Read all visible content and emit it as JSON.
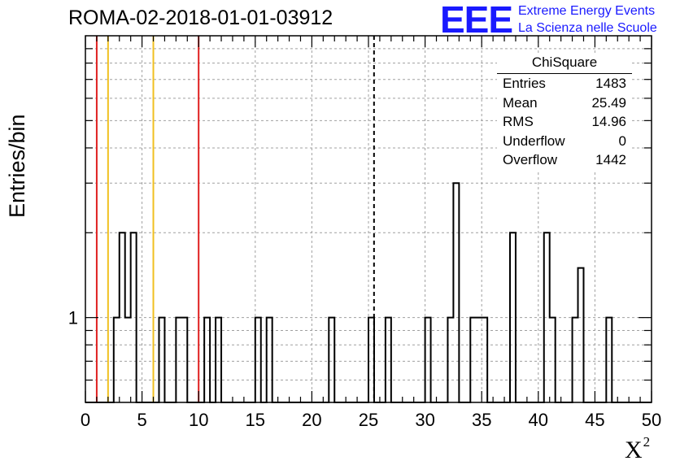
{
  "chart_data": {
    "type": "histogram",
    "title": "ROMA-02-2018-01-01-03912",
    "xlabel": "X",
    "xlabel_sup": "2",
    "ylabel": "Entries/bin",
    "xlim": [
      0,
      50
    ],
    "ylog": true,
    "ylim": [
      0.5,
      10
    ],
    "grid": true,
    "x_ticks": [
      "0",
      "5",
      "10",
      "15",
      "20",
      "25",
      "30",
      "35",
      "40",
      "45",
      "50"
    ],
    "y_ticks": [
      "1"
    ],
    "bin_width": 0.5,
    "bins": [
      {
        "x": 2.5,
        "y": 1
      },
      {
        "x": 3.0,
        "y": 2
      },
      {
        "x": 3.5,
        "y": 1
      },
      {
        "x": 4.0,
        "y": 2
      },
      {
        "x": 6.5,
        "y": 1
      },
      {
        "x": 8.0,
        "y": 1
      },
      {
        "x": 8.5,
        "y": 1
      },
      {
        "x": 10.5,
        "y": 1
      },
      {
        "x": 11.5,
        "y": 1
      },
      {
        "x": 15.0,
        "y": 1
      },
      {
        "x": 16.0,
        "y": 1
      },
      {
        "x": 21.5,
        "y": 1
      },
      {
        "x": 25.0,
        "y": 1
      },
      {
        "x": 26.5,
        "y": 1
      },
      {
        "x": 30.0,
        "y": 1
      },
      {
        "x": 32.0,
        "y": 1
      },
      {
        "x": 32.5,
        "y": 3
      },
      {
        "x": 34.0,
        "y": 1
      },
      {
        "x": 34.5,
        "y": 1
      },
      {
        "x": 35.0,
        "y": 1
      },
      {
        "x": 37.5,
        "y": 2
      },
      {
        "x": 40.5,
        "y": 2
      },
      {
        "x": 41.0,
        "y": 1
      },
      {
        "x": 43.0,
        "y": 1
      },
      {
        "x": 43.5,
        "y": 1.5
      },
      {
        "x": 46.0,
        "y": 1
      }
    ],
    "reference_lines": [
      {
        "x": 1,
        "color": "#e02020",
        "style": "solid"
      },
      {
        "x": 2,
        "color": "#f0c020",
        "style": "solid"
      },
      {
        "x": 6,
        "color": "#f0c020",
        "style": "solid"
      },
      {
        "x": 10,
        "color": "#e02020",
        "style": "solid"
      },
      {
        "x": 25.49,
        "color": "#000000",
        "style": "dashed"
      }
    ],
    "stats_box": {
      "title": "ChiSquare",
      "rows": [
        {
          "label": "Entries",
          "value": "1483"
        },
        {
          "label": "Mean",
          "value": "25.49"
        },
        {
          "label": "RMS",
          "value": "14.96"
        },
        {
          "label": "Underflow",
          "value": "0"
        },
        {
          "label": "Overflow",
          "value": "1442"
        }
      ]
    }
  },
  "logo": {
    "mark": "EEE",
    "line1": "Extreme Energy Events",
    "line2": "La Scienza nelle Scuole"
  },
  "colors": {
    "logo": "#1a1aff",
    "grid": "#a0a0a0",
    "histogram": "#000000"
  }
}
